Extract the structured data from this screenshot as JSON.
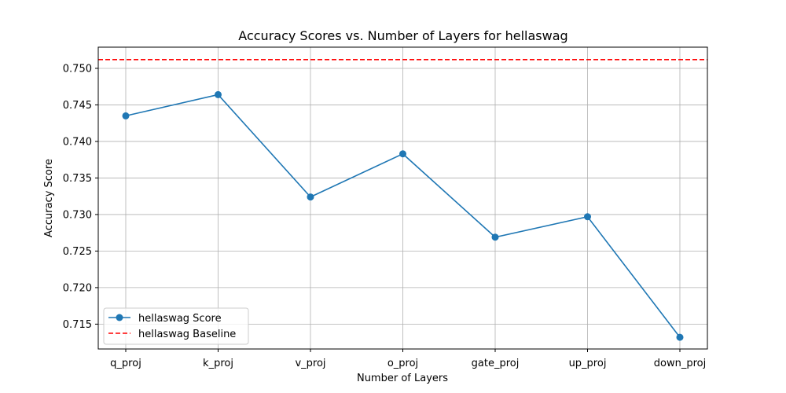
{
  "chart_data": {
    "type": "line",
    "title": "Accuracy Scores vs. Number of Layers for hellaswag",
    "xlabel": "Number of Layers",
    "ylabel": "Accuracy Score",
    "categories": [
      "q_proj",
      "k_proj",
      "v_proj",
      "o_proj",
      "gate_proj",
      "up_proj",
      "down_proj"
    ],
    "series": [
      {
        "name": "hellaswag Score",
        "values": [
          0.7435,
          0.7464,
          0.7324,
          0.7383,
          0.7269,
          0.7297,
          0.7132
        ],
        "color": "#1f77b4",
        "marker": "circle"
      }
    ],
    "baseline": {
      "name": "hellaswag Baseline",
      "value": 0.7512,
      "color": "#ff0000",
      "style": "dashed"
    },
    "yticks": [
      "0.715",
      "0.720",
      "0.725",
      "0.730",
      "0.735",
      "0.740",
      "0.745",
      "0.750"
    ],
    "ylim": [
      0.7116,
      0.7529
    ],
    "grid": true,
    "legend_position": "lower-left"
  }
}
